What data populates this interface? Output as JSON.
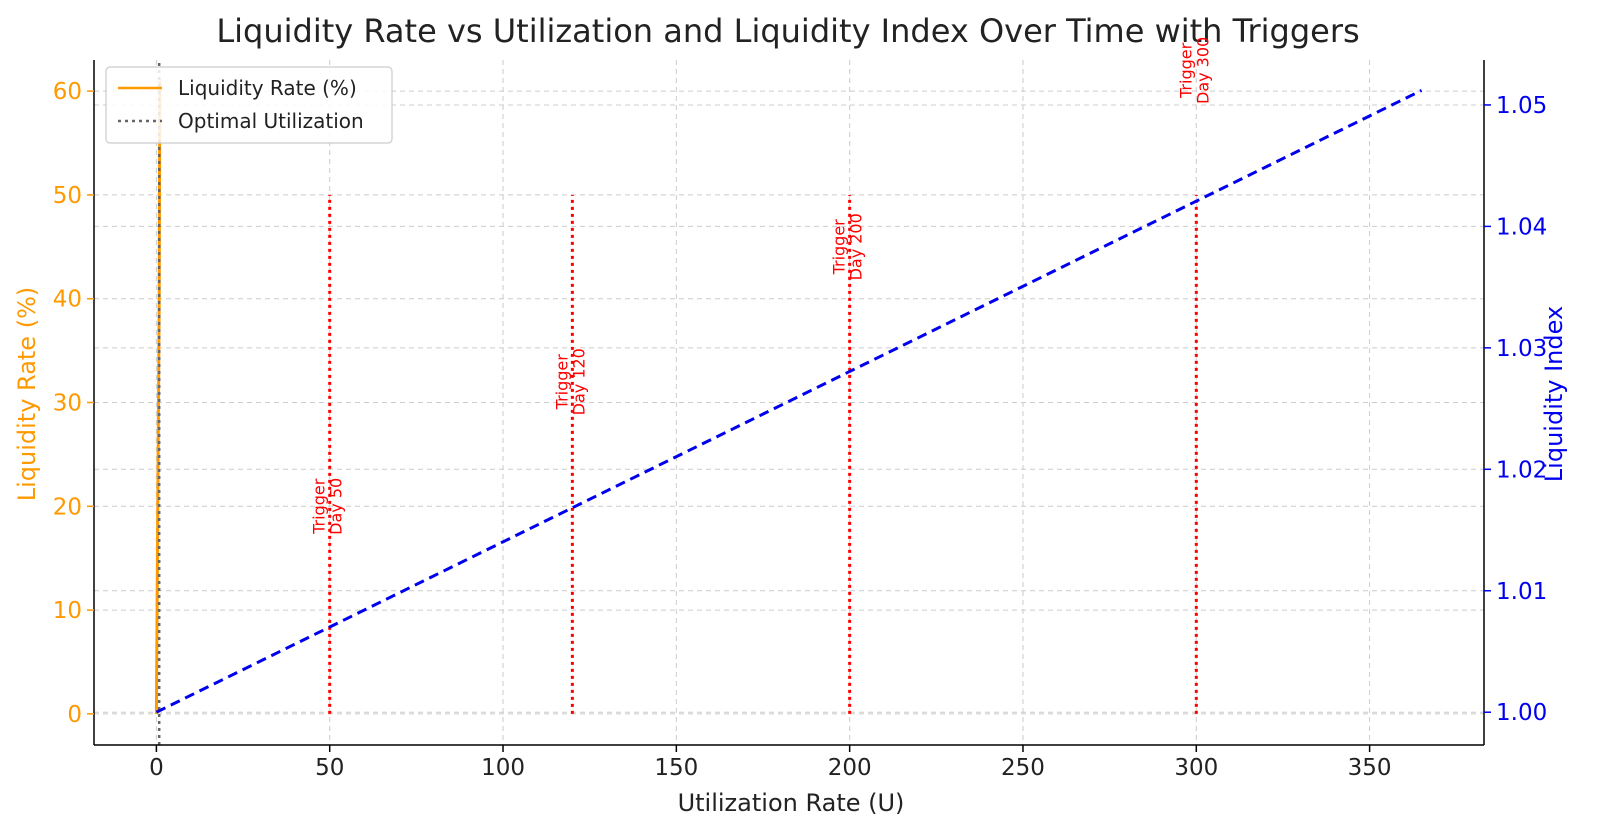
{
  "chart_data": {
    "type": "line",
    "title": "Liquidity Rate vs Utilization and Liquidity Index Over Time with Triggers",
    "xlabel": "Utilization Rate (U)",
    "ylabel_left": "Liquidity Rate (%)",
    "ylabel_right": "Liquidity Index",
    "xlim": [
      -18,
      383
    ],
    "ylim_left": [
      -3,
      63
    ],
    "ylim_right": [
      0.9973,
      1.0537
    ],
    "x_ticks": [
      0,
      50,
      100,
      150,
      200,
      250,
      300,
      350
    ],
    "y_left_ticks": [
      0,
      10,
      20,
      30,
      40,
      50,
      60
    ],
    "y_right_ticks": [
      "1.00",
      "1.01",
      "1.02",
      "1.03",
      "1.04",
      "1.05"
    ],
    "grid": true,
    "legend_position": "top-left",
    "series": [
      {
        "name": "Liquidity Rate (%)",
        "axis": "left",
        "color": "#ff9900",
        "style": "solid",
        "x": [
          0,
          0.8,
          0.9,
          1.0
        ],
        "y": [
          0,
          40,
          51,
          61
        ]
      },
      {
        "name": "Optimal Utilization",
        "axis": "left",
        "color": "#666666",
        "style": "dotted",
        "x": [
          0.8,
          0.8
        ],
        "y": [
          -3,
          63
        ]
      },
      {
        "axis": "right",
        "color": "#0000ee",
        "style": "dashed",
        "x": [
          0,
          365
        ],
        "y": [
          1.0,
          1.0512
        ]
      }
    ],
    "triggers": [
      {
        "x": 50,
        "y_top": 50,
        "label_line1": "Trigger",
        "label_line2": "Day 50",
        "label_y": 20
      },
      {
        "x": 120,
        "y_top": 50,
        "label_line1": "Trigger",
        "label_line2": "Day 120",
        "label_y": 32
      },
      {
        "x": 200,
        "y_top": 50,
        "label_line1": "Trigger",
        "label_line2": "Day 200",
        "label_y": 45
      },
      {
        "x": 300,
        "y_top": 50,
        "label_line1": "Trigger",
        "label_line2": "Day 300",
        "label_y": 62
      }
    ],
    "colors": {
      "left_axis": "#ff9900",
      "right_axis": "#0000ee",
      "trigger": "#ff0000",
      "grid": "#cccccc",
      "text": "#222222"
    }
  }
}
